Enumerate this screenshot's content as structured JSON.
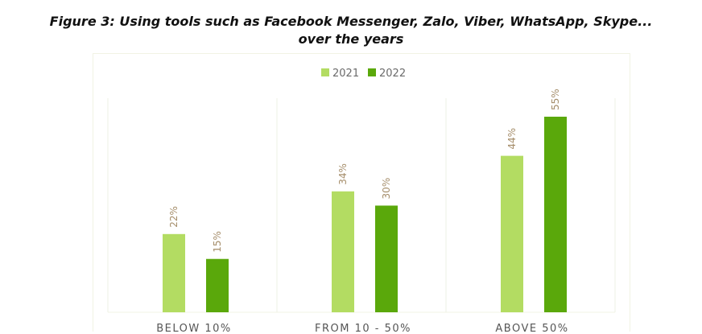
{
  "title_line1": "Figure 3: Using tools such as Facebook Messenger, Zalo, Viber, WhatsApp, Skype...",
  "title_line2": "over the years",
  "chart_data": {
    "type": "bar",
    "categories": [
      "BELOW 10%",
      "FROM 10 - 50%",
      "ABOVE 50%"
    ],
    "series": [
      {
        "name": "2021",
        "values": [
          22,
          34,
          44
        ],
        "labels": [
          "22%",
          "34%",
          "44%"
        ],
        "color": "#b3dc62"
      },
      {
        "name": "2022",
        "values": [
          15,
          30,
          55
        ],
        "labels": [
          "15%",
          "30%",
          "55%"
        ],
        "color": "#5aa80b"
      }
    ],
    "ylim": [
      0,
      60
    ],
    "legend": "top-center",
    "grid": false,
    "label_color": "#a58d6a"
  }
}
